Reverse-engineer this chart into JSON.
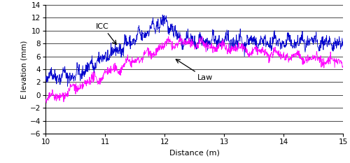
{
  "title": "",
  "xlabel": "Distance (m)",
  "ylabel": "Elevation (mm)",
  "xlim": [
    10,
    15
  ],
  "ylim": [
    -6,
    14
  ],
  "yticks": [
    -6,
    -4,
    -2,
    0,
    2,
    4,
    6,
    8,
    10,
    12,
    14
  ],
  "xticks": [
    10,
    11,
    12,
    13,
    14,
    15
  ],
  "icc_color": "#0000CD",
  "law_color": "#FF00FF",
  "icc_label": "ICC",
  "law_label": "Law",
  "background_color": "#ffffff",
  "figsize": [
    5.0,
    2.33
  ],
  "dpi": 100
}
